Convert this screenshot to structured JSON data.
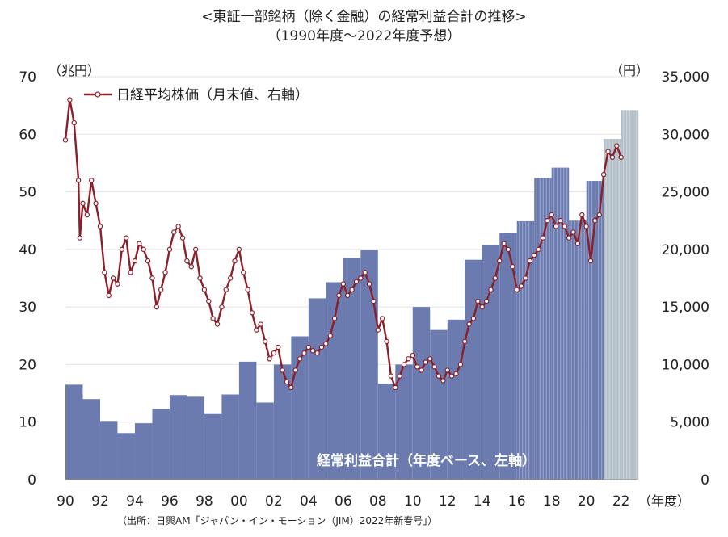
{
  "title": "<東証一部銘柄（除く金融）の経常利益合計の推移>",
  "subtitle": "（1990年度～2022年度予想）",
  "source": "（出所：日興AM「ジャパン・イン・モーション（JIM）2022年新春号」）",
  "colors": {
    "bars": "#6b7bb0",
    "forecast_bars": "#b4c1c9",
    "line": "#8b1f2a",
    "marker_fill": "#ffffff"
  },
  "chart_data": {
    "type": "bar",
    "left_unit": "（兆円）",
    "right_unit": "（円）",
    "x_unit": "（年度）",
    "x_ticks": [
      "90",
      "92",
      "94",
      "96",
      "98",
      "00",
      "02",
      "04",
      "06",
      "08",
      "10",
      "12",
      "14",
      "16",
      "18",
      "20",
      "22"
    ],
    "left_ticks": [
      "0",
      "10",
      "20",
      "30",
      "40",
      "50",
      "60",
      "70"
    ],
    "right_ticks": [
      "0",
      "5,000",
      "10,000",
      "15,000",
      "20,000",
      "25,000",
      "30,000",
      "35,000"
    ],
    "ylim_left": [
      0,
      70
    ],
    "ylim_right": [
      0,
      35000
    ],
    "xlim": [
      1990,
      2022.9
    ],
    "bar_series": {
      "name": "経常利益合計（年度ベース、左軸）",
      "years": [
        1990,
        1991,
        1992,
        1993,
        1994,
        1995,
        1996,
        1997,
        1998,
        1999,
        2000,
        2001,
        2002,
        2003,
        2004,
        2005,
        2006,
        2007,
        2008,
        2009,
        2010,
        2011,
        2012,
        2013,
        2014,
        2015,
        2016,
        2017,
        2018,
        2019,
        2020,
        2021,
        2022
      ],
      "values": [
        16.5,
        14.0,
        10.2,
        8.1,
        9.8,
        12.3,
        14.7,
        14.4,
        11.4,
        14.8,
        20.5,
        13.4,
        20.0,
        24.9,
        31.5,
        34.3,
        38.5,
        39.9,
        16.7,
        20.0,
        30.0,
        26.0,
        27.8,
        38.2,
        40.8,
        42.9,
        44.9,
        52.4,
        54.2,
        45.0,
        51.9,
        59.2,
        64.2
      ],
      "forecast_from": 2021
    },
    "line_series": {
      "name": "日経平均株価（月末値、右軸）",
      "points": [
        [
          1990.0,
          29500
        ],
        [
          1990.25,
          33000
        ],
        [
          1990.5,
          31000
        ],
        [
          1990.75,
          26000
        ],
        [
          1990.83,
          21000
        ],
        [
          1991.0,
          24000
        ],
        [
          1991.25,
          23000
        ],
        [
          1991.5,
          26000
        ],
        [
          1991.75,
          24000
        ],
        [
          1992.0,
          22000
        ],
        [
          1992.25,
          18000
        ],
        [
          1992.5,
          16000
        ],
        [
          1992.75,
          17500
        ],
        [
          1993.0,
          17000
        ],
        [
          1993.25,
          20000
        ],
        [
          1993.5,
          21000
        ],
        [
          1993.75,
          18000
        ],
        [
          1994.0,
          19000
        ],
        [
          1994.25,
          20500
        ],
        [
          1994.5,
          20000
        ],
        [
          1994.75,
          19000
        ],
        [
          1995.0,
          17500
        ],
        [
          1995.25,
          15000
        ],
        [
          1995.5,
          16500
        ],
        [
          1995.75,
          18000
        ],
        [
          1996.0,
          20000
        ],
        [
          1996.25,
          21500
        ],
        [
          1996.5,
          22000
        ],
        [
          1996.75,
          21000
        ],
        [
          1997.0,
          19000
        ],
        [
          1997.25,
          18500
        ],
        [
          1997.5,
          20000
        ],
        [
          1997.75,
          17500
        ],
        [
          1998.0,
          16500
        ],
        [
          1998.25,
          15500
        ],
        [
          1998.5,
          14000
        ],
        [
          1998.75,
          13500
        ],
        [
          1999.0,
          15000
        ],
        [
          1999.25,
          16500
        ],
        [
          1999.5,
          17500
        ],
        [
          1999.75,
          19000
        ],
        [
          2000.0,
          20000
        ],
        [
          2000.25,
          18000
        ],
        [
          2000.5,
          16500
        ],
        [
          2000.75,
          14500
        ],
        [
          2001.0,
          13000
        ],
        [
          2001.25,
          13500
        ],
        [
          2001.5,
          12000
        ],
        [
          2001.75,
          10500
        ],
        [
          2002.0,
          11000
        ],
        [
          2002.25,
          11500
        ],
        [
          2002.5,
          9500
        ],
        [
          2002.75,
          8500
        ],
        [
          2003.0,
          8000
        ],
        [
          2003.25,
          9500
        ],
        [
          2003.5,
          10500
        ],
        [
          2003.75,
          11000
        ],
        [
          2004.0,
          11500
        ],
        [
          2004.25,
          11200
        ],
        [
          2004.5,
          11000
        ],
        [
          2004.75,
          11500
        ],
        [
          2005.0,
          11800
        ],
        [
          2005.25,
          12500
        ],
        [
          2005.5,
          14000
        ],
        [
          2005.75,
          16000
        ],
        [
          2006.0,
          17000
        ],
        [
          2006.25,
          16000
        ],
        [
          2006.5,
          16500
        ],
        [
          2006.75,
          17200
        ],
        [
          2007.0,
          17500
        ],
        [
          2007.25,
          18000
        ],
        [
          2007.5,
          17000
        ],
        [
          2007.75,
          15500
        ],
        [
          2008.0,
          13000
        ],
        [
          2008.25,
          14000
        ],
        [
          2008.5,
          12000
        ],
        [
          2008.75,
          9000
        ],
        [
          2009.0,
          8000
        ],
        [
          2009.25,
          9000
        ],
        [
          2009.5,
          10000
        ],
        [
          2009.75,
          10500
        ],
        [
          2010.0,
          10800
        ],
        [
          2010.25,
          9800
        ],
        [
          2010.5,
          9500
        ],
        [
          2010.75,
          10200
        ],
        [
          2011.0,
          10500
        ],
        [
          2011.25,
          9800
        ],
        [
          2011.5,
          9000
        ],
        [
          2011.75,
          8600
        ],
        [
          2012.0,
          9500
        ],
        [
          2012.25,
          9000
        ],
        [
          2012.5,
          9200
        ],
        [
          2012.75,
          10000
        ],
        [
          2013.0,
          12000
        ],
        [
          2013.25,
          13500
        ],
        [
          2013.5,
          14000
        ],
        [
          2013.75,
          15500
        ],
        [
          2014.0,
          15000
        ],
        [
          2014.25,
          15500
        ],
        [
          2014.5,
          16500
        ],
        [
          2014.75,
          17500
        ],
        [
          2015.0,
          19000
        ],
        [
          2015.25,
          20500
        ],
        [
          2015.5,
          20000
        ],
        [
          2015.75,
          18500
        ],
        [
          2016.0,
          16500
        ],
        [
          2016.25,
          16800
        ],
        [
          2016.5,
          17500
        ],
        [
          2016.75,
          19000
        ],
        [
          2017.0,
          19500
        ],
        [
          2017.25,
          20000
        ],
        [
          2017.5,
          21000
        ],
        [
          2017.75,
          22500
        ],
        [
          2018.0,
          23000
        ],
        [
          2018.25,
          22000
        ],
        [
          2018.5,
          22500
        ],
        [
          2018.75,
          22000
        ],
        [
          2019.0,
          21000
        ],
        [
          2019.25,
          21500
        ],
        [
          2019.5,
          20500
        ],
        [
          2019.75,
          23000
        ],
        [
          2020.0,
          22000
        ],
        [
          2020.25,
          19000
        ],
        [
          2020.5,
          22500
        ],
        [
          2020.75,
          23000
        ],
        [
          2021.0,
          26500
        ],
        [
          2021.25,
          28500
        ],
        [
          2021.5,
          28000
        ],
        [
          2021.75,
          29000
        ],
        [
          2022.0,
          28000
        ]
      ]
    }
  }
}
